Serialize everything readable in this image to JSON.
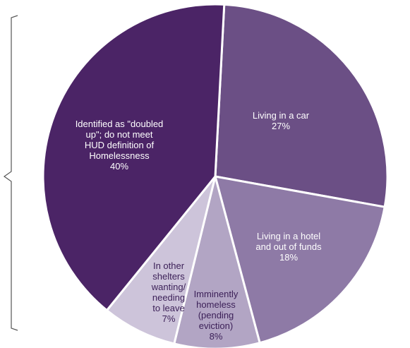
{
  "chart_data": {
    "type": "pie",
    "slices": [
      {
        "label": "Living in a car",
        "lines": [
          "Living in a car"
        ],
        "percent_label": "27%",
        "value": 27,
        "color": "#6b4f85",
        "text_color": "#ffffff"
      },
      {
        "label": "Living in a hotel and out of funds",
        "lines": [
          "Living in a hotel",
          "and out of funds"
        ],
        "percent_label": "18%",
        "value": 18,
        "color": "#8e7aa6",
        "text_color": "#ffffff"
      },
      {
        "label": "Imminently homeless (pending eviction)",
        "lines": [
          "Imminently",
          "homeless",
          "(pending",
          "eviction)"
        ],
        "percent_label": "8%",
        "value": 8,
        "color": "#b2a5c4",
        "text_color": "#3b1f57"
      },
      {
        "label": "In other shelters wanting/ needing to leave",
        "lines": [
          "In other",
          "shelters",
          "wanting/",
          "needing",
          "to leave"
        ],
        "percent_label": "7%",
        "value": 7,
        "color": "#cdc4da",
        "text_color": "#3b1f57"
      },
      {
        "label": "Identified as \"doubled up\"; do not meet HUD definition of Homelessness",
        "lines": [
          "Identified as \"doubled",
          "up\"; do not meet",
          "HUD definition of",
          "Homelessness"
        ],
        "percent_label": "40%",
        "value": 40,
        "color": "#4b2466",
        "text_color": "#ffffff"
      }
    ]
  }
}
